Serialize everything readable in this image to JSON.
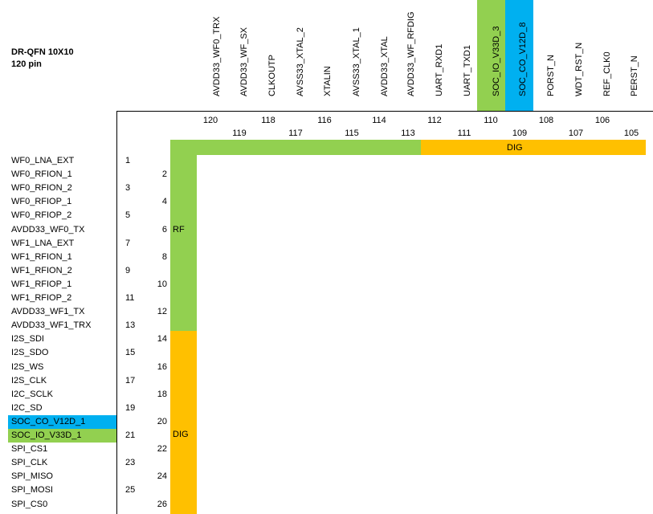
{
  "title": {
    "line1": "DR-QFN 10X10",
    "line2": "120 pin"
  },
  "colors": {
    "green": "#92d050",
    "blue": "#00b0f0",
    "orange": "#ffc000"
  },
  "top_pins": [
    "AVDD33_WF0_TRX",
    "AVDD33_WF_SX",
    "CLKOUTP",
    "AVSS33_XTAL_2",
    "XTALIN",
    "AVSS33_XTAL_1",
    "AVDD33_XTAL",
    "AVDD33_WF_RFDIG",
    "UART_RXD1",
    "UART_TXD1",
    "SOC_IO_V33D_3",
    "SOC_CO_V12D_8",
    "PORST_N",
    "WDT_RST_N",
    "REF_CLK0",
    "PERST_N"
  ],
  "top_nums_row1": [
    "120",
    "118",
    "116",
    "114",
    "112",
    "110",
    "108",
    "106"
  ],
  "top_nums_row2": [
    "119",
    "117",
    "115",
    "113",
    "111",
    "109",
    "107",
    "105"
  ],
  "left_pins": [
    "WF0_LNA_EXT",
    "WF0_RFION_1",
    "WF0_RFION_2",
    "WF0_RFIOP_1",
    "WF0_RFIOP_2",
    "AVDD33_WF0_TX",
    "WF1_LNA_EXT",
    "WF1_RFION_1",
    "WF1_RFION_2",
    "WF1_RFIOP_1",
    "WF1_RFIOP_2",
    "AVDD33_WF1_TX",
    "AVDD33_WF1_TRX",
    "I2S_SDI",
    "I2S_SDO",
    "I2S_WS",
    "I2S_CLK",
    "I2C_SCLK",
    "I2C_SD",
    "SOC_CO_V12D_1",
    "SOC_IO_V33D_1",
    "SPI_CS1",
    "SPI_CLK",
    "SPI_MISO",
    "SPI_MOSI",
    "SPI_CS0"
  ],
  "left_nums": [
    "1",
    "2",
    "3",
    "4",
    "5",
    "6",
    "7",
    "8",
    "9",
    "10",
    "11",
    "12",
    "13",
    "14",
    "15",
    "16",
    "17",
    "18",
    "19",
    "20",
    "21",
    "22",
    "23",
    "24",
    "25",
    "26"
  ],
  "regions": {
    "rf": "RF",
    "dig_left": "DIG",
    "dig_top": "DIG"
  }
}
